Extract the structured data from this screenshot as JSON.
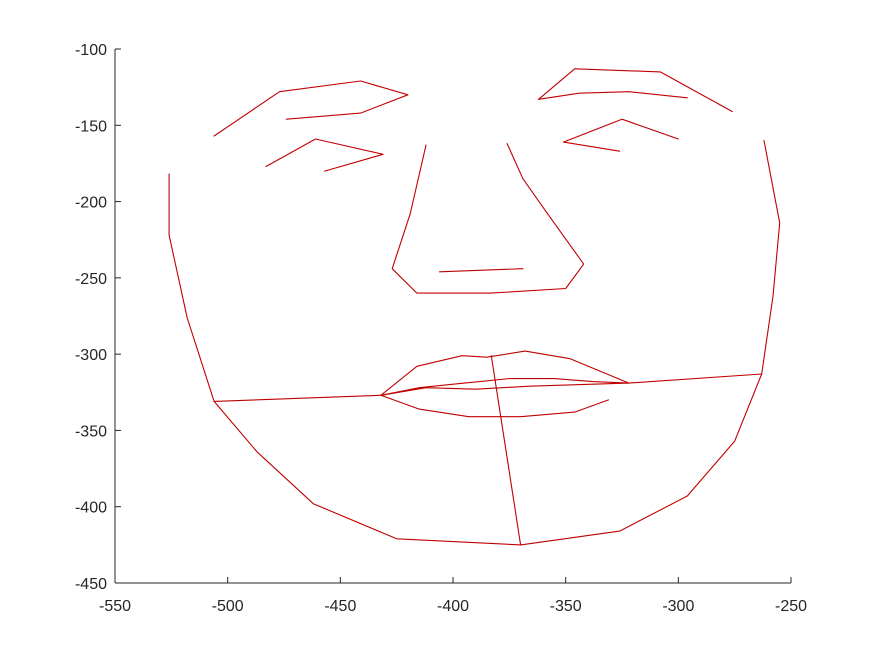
{
  "chart_data": {
    "type": "line",
    "title": "",
    "xlabel": "",
    "ylabel": "",
    "xlim": [
      -550,
      -250
    ],
    "ylim": [
      -450,
      -100
    ],
    "y_reversed": true,
    "grid": false,
    "line_color": "#c00000",
    "axis_color": "#262626",
    "x_ticks": [
      -550,
      -500,
      -450,
      -400,
      -350,
      -300,
      -250
    ],
    "x_tick_labels": [
      "-550",
      "-500",
      "-450",
      "-400",
      "-350",
      "-300",
      "-250"
    ],
    "y_ticks": [
      -100,
      -150,
      -200,
      -250,
      -300,
      -350,
      -400,
      -450
    ],
    "y_tick_labels": [
      "-100",
      "-150",
      "-200",
      "-250",
      "-300",
      "-350",
      "-400",
      "-450"
    ],
    "series": [
      {
        "points": [
          [
            -526,
            -182
          ],
          [
            -526,
            -222
          ],
          [
            -518,
            -276
          ],
          [
            -506,
            -331
          ],
          [
            -487,
            -364
          ],
          [
            -462,
            -398
          ],
          [
            -425,
            -421
          ],
          [
            -370,
            -425
          ],
          [
            -326,
            -416
          ],
          [
            -296,
            -393
          ],
          [
            -275,
            -357
          ],
          [
            -263,
            -313
          ],
          [
            -258,
            -262
          ],
          [
            -255,
            -214
          ],
          [
            -262,
            -160
          ]
        ]
      },
      {
        "points": [
          [
            -506,
            -157
          ],
          [
            -477,
            -128
          ],
          [
            -441,
            -121
          ],
          [
            -420,
            -130
          ],
          [
            -441,
            -142
          ],
          [
            -474,
            -146
          ]
        ]
      },
      {
        "points": [
          [
            -483,
            -177
          ],
          [
            -461,
            -159
          ],
          [
            -431,
            -169
          ],
          [
            -457,
            -180
          ]
        ]
      },
      {
        "points": [
          [
            -362,
            -133
          ],
          [
            -346,
            -113
          ],
          [
            -308,
            -115
          ],
          [
            -276,
            -141
          ]
        ]
      },
      {
        "points": [
          [
            -362,
            -133
          ],
          [
            -344,
            -129
          ],
          [
            -322,
            -128
          ],
          [
            -296,
            -132
          ]
        ]
      },
      {
        "points": [
          [
            -351,
            -161
          ],
          [
            -325,
            -146
          ],
          [
            -300,
            -159
          ]
        ]
      },
      {
        "points": [
          [
            -351,
            -161
          ],
          [
            -326,
            -167
          ]
        ]
      },
      {
        "points": [
          [
            -412,
            -163
          ],
          [
            -419,
            -208
          ],
          [
            -427,
            -244
          ],
          [
            -416,
            -260
          ],
          [
            -383,
            -260
          ],
          [
            -350,
            -257
          ],
          [
            -342,
            -241
          ],
          [
            -359,
            -206
          ],
          [
            -369,
            -185
          ],
          [
            -376,
            -162
          ]
        ]
      },
      {
        "points": [
          [
            -406,
            -246
          ],
          [
            -369,
            -244
          ]
        ]
      },
      {
        "points": [
          [
            -432,
            -327
          ],
          [
            -416,
            -308
          ],
          [
            -396,
            -301
          ],
          [
            -385,
            -302
          ],
          [
            -368,
            -298
          ],
          [
            -348,
            -303
          ],
          [
            -322,
            -319
          ]
        ]
      },
      {
        "points": [
          [
            -432,
            -327
          ],
          [
            -415,
            -322
          ],
          [
            -395,
            -319
          ],
          [
            -375,
            -316
          ],
          [
            -355,
            -316
          ],
          [
            -338,
            -318
          ],
          [
            -322,
            -319
          ]
        ]
      },
      {
        "points": [
          [
            -432,
            -327
          ],
          [
            -412,
            -322
          ],
          [
            -390,
            -323
          ],
          [
            -366,
            -321
          ],
          [
            -345,
            -320
          ],
          [
            -322,
            -319
          ]
        ]
      },
      {
        "points": [
          [
            -432,
            -327
          ],
          [
            -415,
            -336
          ],
          [
            -393,
            -341
          ],
          [
            -370,
            -341
          ],
          [
            -346,
            -338
          ],
          [
            -331,
            -330
          ]
        ]
      },
      {
        "points": [
          [
            -506,
            -331
          ],
          [
            -432,
            -327
          ]
        ]
      },
      {
        "points": [
          [
            -322,
            -319
          ],
          [
            -263,
            -313
          ]
        ]
      },
      {
        "points": [
          [
            -383,
            -301
          ],
          [
            -370,
            -425
          ]
        ]
      }
    ]
  }
}
